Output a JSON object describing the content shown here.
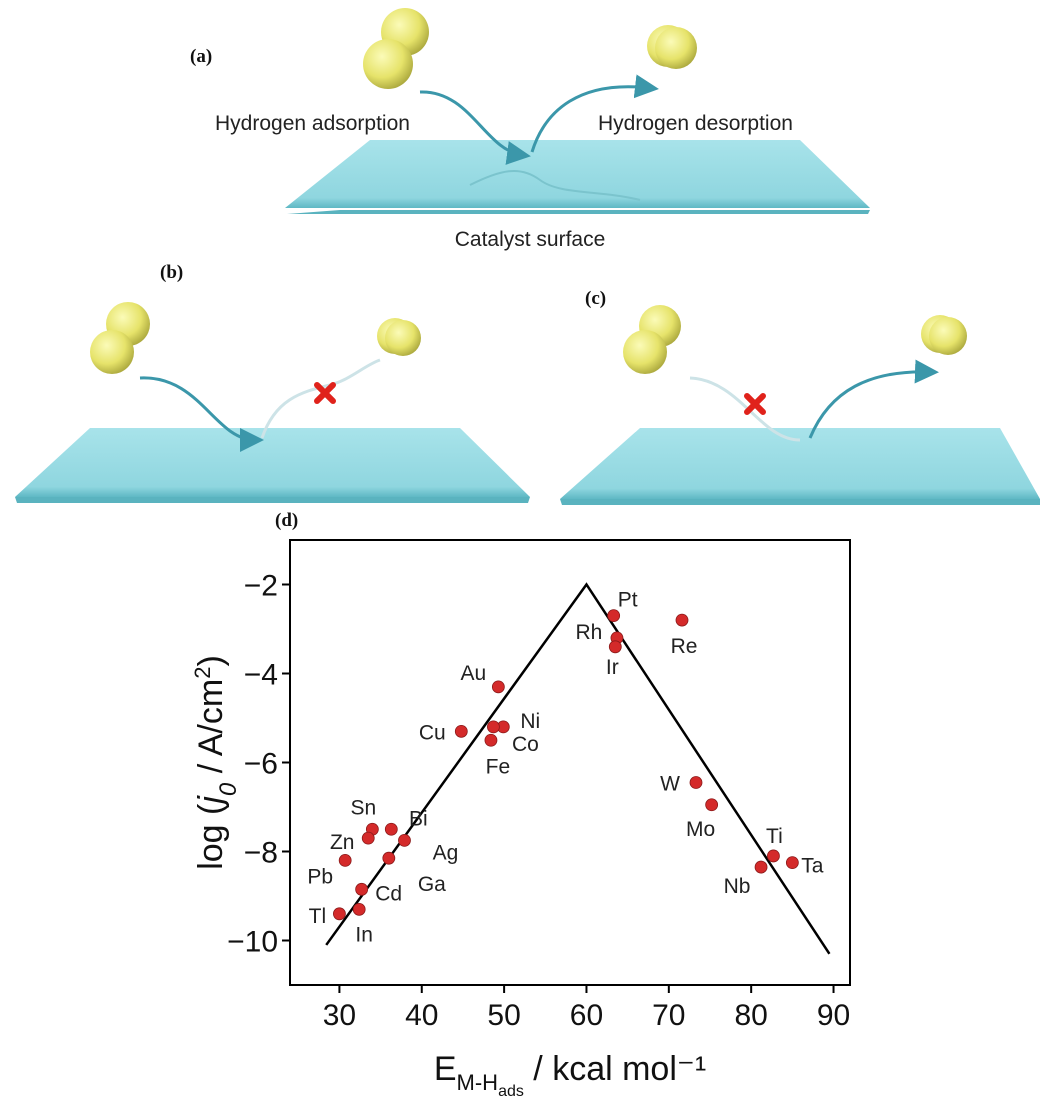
{
  "panel_labels": {
    "a": "(a)",
    "b": "(b)",
    "c": "(c)",
    "d": "(d)"
  },
  "diagram_a": {
    "left": "Hydrogen adsorption",
    "right": "Hydrogen desorption",
    "bottom": "Catalyst surface"
  },
  "chart_data": {
    "type": "scatter",
    "y_label_parts": [
      "log (",
      "j",
      "0",
      " / A/cm",
      "2",
      ")"
    ],
    "x_label_parts": [
      "E",
      "M-H",
      "ads",
      " / kcal mol⁻¹"
    ],
    "labels": [
      "Pt",
      "Rh",
      "Ir",
      "Re",
      "Au",
      "Cu",
      "Ni",
      "Co",
      "Fe",
      "W",
      "Mo",
      "Ti",
      "Ta",
      "Nb",
      "Sn",
      "Zn",
      "Bi",
      "Ag",
      "Ga",
      "Pb",
      "Cd",
      "Tl",
      "In"
    ],
    "x": [
      63.3,
      63.7,
      63.5,
      71.6,
      49.3,
      44.8,
      49.9,
      48.7,
      48.4,
      73.3,
      75.2,
      82.7,
      85.0,
      81.2,
      34.0,
      33.5,
      36.3,
      37.9,
      36.0,
      30.7,
      32.7,
      30.0,
      32.4
    ],
    "values": [
      -2.7,
      -3.2,
      -3.4,
      -2.8,
      -4.3,
      -5.3,
      -5.2,
      -5.2,
      -5.5,
      -6.45,
      -6.95,
      -8.1,
      -8.25,
      -8.35,
      -7.5,
      -7.7,
      -7.5,
      -7.75,
      -8.15,
      -8.2,
      -8.85,
      -9.4,
      -9.3
    ],
    "color": "#d42a2a",
    "volcano_line": {
      "x": [
        28.4,
        60,
        89.5
      ],
      "values": [
        -10.1,
        -2,
        -10.3
      ],
      "color": "#000000"
    },
    "xlim": [
      24,
      92
    ],
    "ylim": [
      -11,
      -1
    ],
    "xticks": [
      30,
      40,
      50,
      60,
      70,
      80,
      90
    ],
    "yticks": [
      -2,
      -4,
      -6,
      -8,
      -10
    ]
  }
}
